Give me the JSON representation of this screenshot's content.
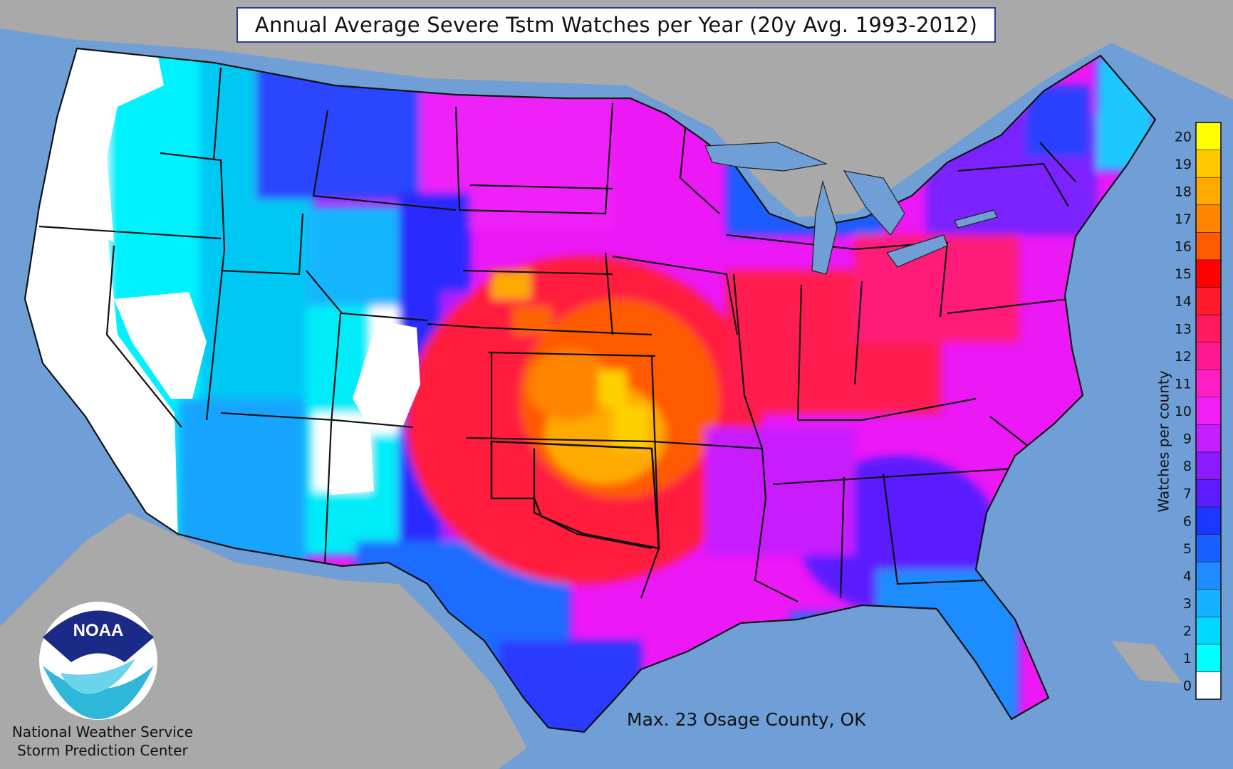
{
  "title": "Annual Average Severe Tstm Watches per Year (20y Avg. 1993-2012)",
  "legend": {
    "title": "Watches per county",
    "colors": [
      "#ffffff",
      "#00ffff",
      "#00d8ff",
      "#16b2ff",
      "#1e8cff",
      "#1661ff",
      "#1a36ff",
      "#5b1dff",
      "#8c1aff",
      "#c21eff",
      "#f21ef6",
      "#ff1ec6",
      "#ff1a94",
      "#ff1a60",
      "#ff1a2c",
      "#ff0000",
      "#ff5a00",
      "#ff8400",
      "#ffaa00",
      "#ffc800",
      "#ffff00"
    ],
    "labels": [
      "0",
      "1",
      "2",
      "3",
      "4",
      "5",
      "6",
      "7",
      "8",
      "9",
      "10",
      "11",
      "12",
      "13",
      "14",
      "15",
      "16",
      "17",
      "18",
      "19",
      "20"
    ]
  },
  "annotation": "Max. 23 Osage County, OK",
  "agency": {
    "logo_text": "NOAA",
    "line1": "National Weather Service",
    "line2": "Storm Prediction Center"
  },
  "colors": {
    "ocean": "#6f9fd6",
    "land_outside": "#a9a9a9",
    "title_border": "#2a3a9c"
  }
}
